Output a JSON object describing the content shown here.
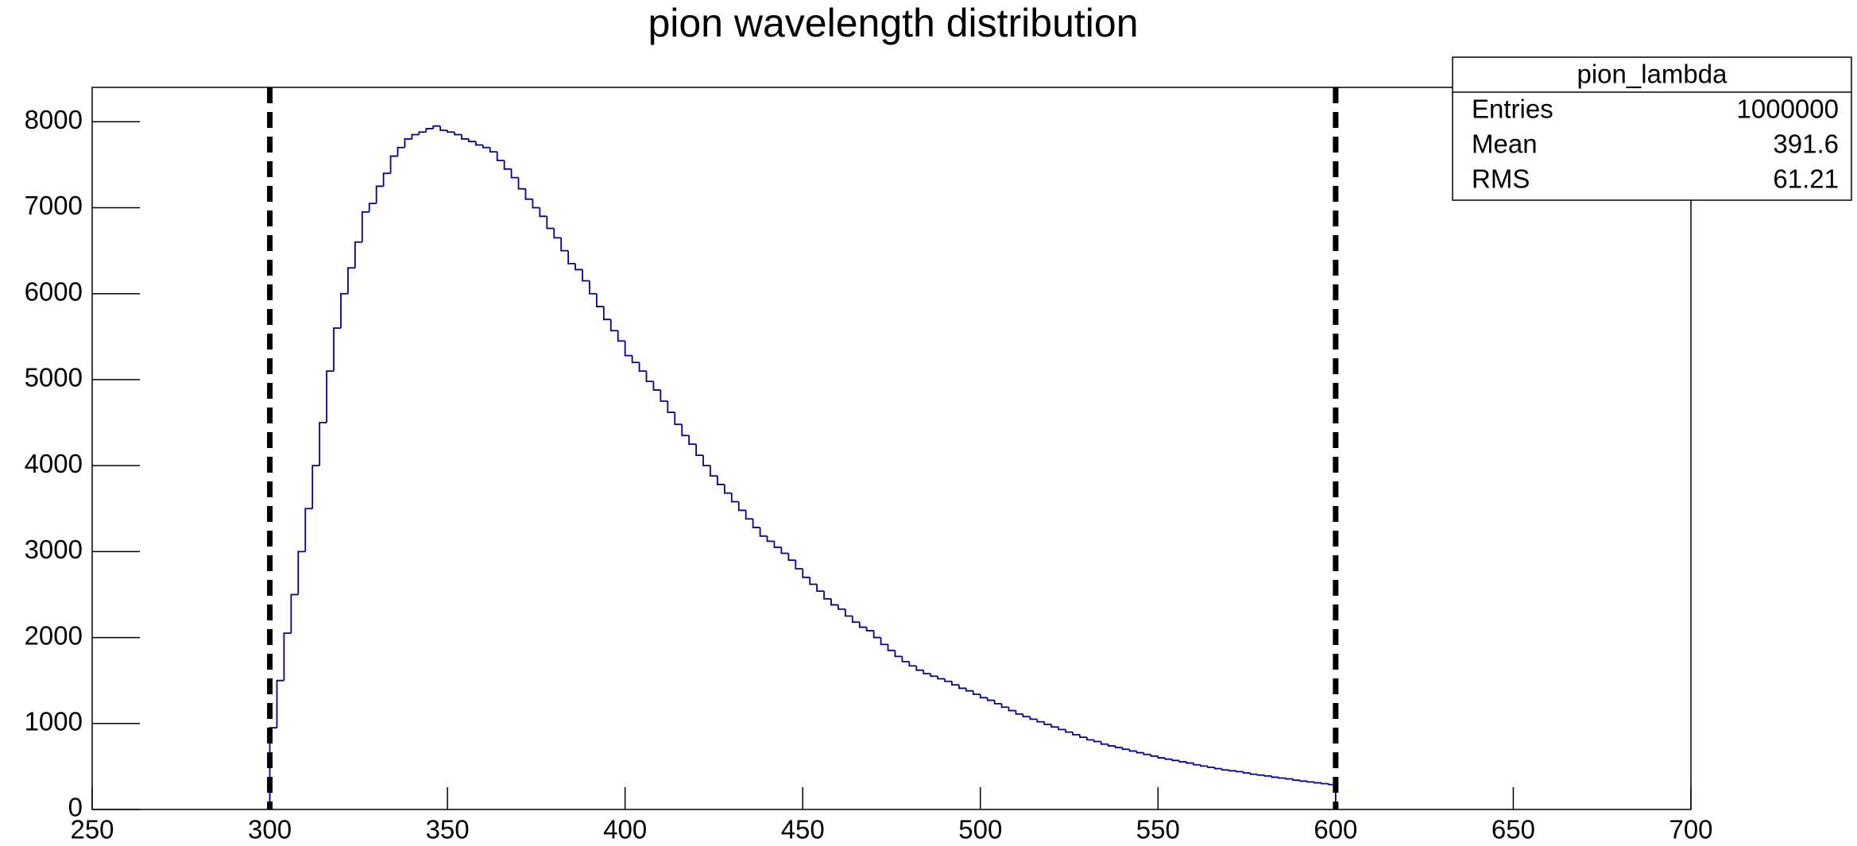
{
  "chart_data": {
    "type": "histogram",
    "title": "pion wavelength distribution",
    "bins": [
      300,
      302,
      304,
      306,
      308,
      310,
      312,
      314,
      316,
      318,
      320,
      322,
      324,
      326,
      328,
      330,
      332,
      334,
      336,
      338,
      340,
      342,
      344,
      346,
      348,
      350,
      352,
      354,
      356,
      358,
      360,
      362,
      364,
      366,
      368,
      370,
      372,
      374,
      376,
      378,
      380,
      382,
      384,
      386,
      388,
      390,
      392,
      394,
      396,
      398,
      400,
      402,
      404,
      406,
      408,
      410,
      412,
      414,
      416,
      418,
      420,
      422,
      424,
      426,
      428,
      430,
      432,
      434,
      436,
      438,
      440,
      442,
      444,
      446,
      448,
      450,
      452,
      454,
      456,
      458,
      460,
      462,
      464,
      466,
      468,
      470,
      472,
      474,
      476,
      478,
      480,
      482,
      484,
      486,
      488,
      490,
      492,
      494,
      496,
      498,
      500,
      502,
      504,
      506,
      508,
      510,
      512,
      514,
      516,
      518,
      520,
      522,
      524,
      526,
      528,
      530,
      532,
      534,
      536,
      538,
      540,
      542,
      544,
      546,
      548,
      550,
      552,
      554,
      556,
      558,
      560,
      562,
      564,
      566,
      568,
      570,
      572,
      574,
      576,
      578,
      580,
      582,
      584,
      586,
      588,
      590,
      592,
      594,
      596,
      598,
      600
    ],
    "values": [
      950,
      1500,
      2050,
      2500,
      3000,
      3500,
      4000,
      4500,
      5100,
      5600,
      6000,
      6300,
      6600,
      6950,
      7050,
      7250,
      7400,
      7600,
      7700,
      7800,
      7850,
      7880,
      7920,
      7950,
      7900,
      7880,
      7850,
      7800,
      7770,
      7730,
      7700,
      7650,
      7550,
      7450,
      7350,
      7220,
      7100,
      7000,
      6900,
      6760,
      6650,
      6500,
      6350,
      6280,
      6150,
      6000,
      5850,
      5700,
      5570,
      5450,
      5280,
      5200,
      5100,
      4980,
      4880,
      4750,
      4620,
      4480,
      4350,
      4250,
      4120,
      4000,
      3880,
      3780,
      3680,
      3580,
      3480,
      3380,
      3280,
      3180,
      3120,
      3050,
      2980,
      2900,
      2800,
      2700,
      2620,
      2540,
      2450,
      2380,
      2330,
      2250,
      2180,
      2120,
      2080,
      2000,
      1920,
      1850,
      1780,
      1720,
      1670,
      1620,
      1580,
      1550,
      1520,
      1490,
      1450,
      1410,
      1380,
      1340,
      1300,
      1270,
      1230,
      1190,
      1150,
      1110,
      1080,
      1050,
      1020,
      990,
      960,
      930,
      900,
      870,
      840,
      810,
      790,
      760,
      740,
      720,
      700,
      680,
      660,
      640,
      620,
      600,
      585,
      570,
      555,
      540,
      520,
      505,
      490,
      475,
      460,
      450,
      440,
      425,
      410,
      400,
      390,
      375,
      365,
      355,
      340,
      330,
      320,
      310,
      300,
      290
    ],
    "color": "#000099",
    "cut_lines": [
      300,
      600
    ],
    "xlim": [
      250,
      700
    ],
    "xticks": [
      250,
      300,
      350,
      400,
      450,
      500,
      550,
      600,
      650,
      700
    ],
    "ylim": [
      0,
      8400
    ],
    "yticks": [
      0,
      1000,
      2000,
      3000,
      4000,
      5000,
      6000,
      7000,
      8000
    ],
    "stats": {
      "title": "pion_lambda",
      "rows": [
        {
          "label": "Entries",
          "value": 1000000
        },
        {
          "label": "Mean",
          "value": 391.6
        },
        {
          "label": "RMS",
          "value": 61.21
        }
      ]
    }
  }
}
